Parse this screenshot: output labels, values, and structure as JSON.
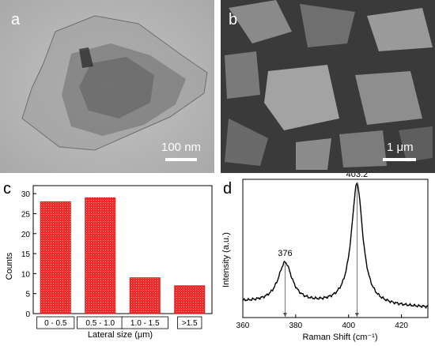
{
  "panels": {
    "a": {
      "letter": "a",
      "scale_label": "100 nm"
    },
    "b": {
      "letter": "b",
      "scale_label": "1 μm"
    },
    "c": {
      "letter": "c"
    },
    "d": {
      "letter": "d"
    }
  },
  "chart_data": [
    {
      "type": "bar",
      "categories": [
        "0 - 0.5",
        "0.5 - 1.0",
        "1.0 - 1.5",
        ">1.5"
      ],
      "values": [
        28,
        29,
        9,
        7
      ],
      "xlabel": "Lateral size (μm)",
      "ylabel": "Counts",
      "ylim": [
        0,
        32
      ],
      "yticks": [
        0,
        5,
        10,
        15,
        20,
        25,
        30
      ],
      "bar_color": "#ee2a2a",
      "grid": false
    },
    {
      "type": "line",
      "xlabel": "Raman Shift (cm⁻¹)",
      "ylabel": "Intensity (a.u.)",
      "xlim": [
        360,
        430
      ],
      "xticks": [
        360,
        380,
        400,
        420
      ],
      "annotations": [
        {
          "x": 376,
          "label": "376"
        },
        {
          "x": 403.2,
          "label": "403.2"
        }
      ],
      "peaks": [
        {
          "center": 376,
          "height": 0.29,
          "width": 3.2
        },
        {
          "center": 403.2,
          "height": 0.88,
          "width": 2.6
        }
      ],
      "baseline": 0.07,
      "grid": false
    }
  ]
}
